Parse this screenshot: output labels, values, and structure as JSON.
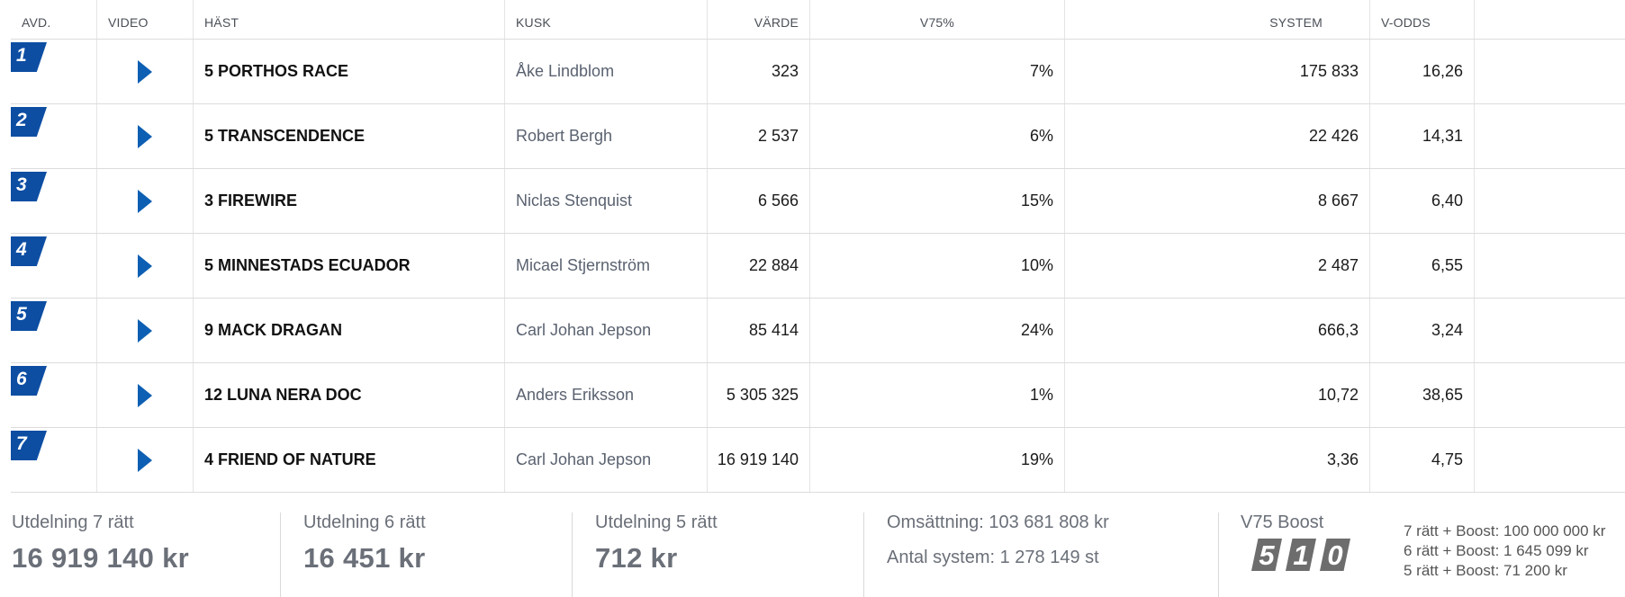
{
  "headers": {
    "avd": "AVD.",
    "video": "VIDEO",
    "hast": "HÄST",
    "kusk": "KUSK",
    "varde": "VÄRDE",
    "v75": "V75%",
    "system": "SYSTEM",
    "vodds": "V-ODDS"
  },
  "rows": [
    {
      "avd": "1",
      "horse": "5  PORTHOS RACE",
      "driver": "Åke Lindblom",
      "varde": "323",
      "v75": "7%",
      "system": "175 833",
      "vodds": "16,26"
    },
    {
      "avd": "2",
      "horse": "5  TRANSCENDENCE",
      "driver": "Robert Bergh",
      "varde": "2 537",
      "v75": "6%",
      "system": "22 426",
      "vodds": "14,31"
    },
    {
      "avd": "3",
      "horse": "3  FIREWIRE",
      "driver": "Niclas Stenquist",
      "varde": "6 566",
      "v75": "15%",
      "system": "8 667",
      "vodds": "6,40"
    },
    {
      "avd": "4",
      "horse": "5  MINNESTADS ECUADOR",
      "driver": "Micael Stjernström",
      "varde": "22 884",
      "v75": "10%",
      "system": "2 487",
      "vodds": "6,55"
    },
    {
      "avd": "5",
      "horse": "9  MACK DRAGAN",
      "driver": "Carl Johan Jepson",
      "varde": "85 414",
      "v75": "24%",
      "system": "666,3",
      "vodds": "3,24"
    },
    {
      "avd": "6",
      "horse": "12  LUNA NERA DOC",
      "driver": "Anders Eriksson",
      "varde": "5 305 325",
      "v75": "1%",
      "system": "10,72",
      "vodds": "38,65"
    },
    {
      "avd": "7",
      "horse": "4  FRIEND OF NATURE",
      "driver": "Carl Johan Jepson",
      "varde": "16 919 140",
      "v75": "19%",
      "system": "3,36",
      "vodds": "4,75"
    }
  ],
  "payouts": {
    "p7_label": "Utdelning 7 rätt",
    "p7_value": "16 919 140 kr",
    "p6_label": "Utdelning 6 rätt",
    "p6_value": "16 451 kr",
    "p5_label": "Utdelning 5 rätt",
    "p5_value": "712 kr",
    "omsattning": "Omsättning: 103 681 808 kr",
    "antal_system": "Antal system: 1 278 149 st"
  },
  "boost": {
    "title": "V75 Boost",
    "digits": [
      "5",
      "1",
      "0"
    ],
    "lines": [
      "7 rätt + Boost: 100 000 000 kr",
      "6 rätt + Boost: 1 645 099 kr",
      "5 rätt + Boost: 71 200 kr"
    ]
  },
  "colors": {
    "badge": "#0d4ea3",
    "play": "#0d5fb3",
    "boost_digit": "#6d6d6d"
  },
  "icons": {
    "video": "play-icon",
    "avd": "race-number-badge"
  }
}
